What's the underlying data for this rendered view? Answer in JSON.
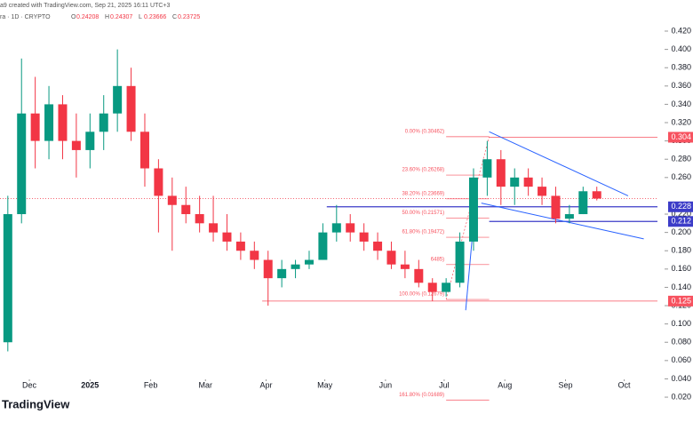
{
  "header": {
    "credit": "a9 created with TradingView.com, Sep 21, 2025 16:11 UTC+3",
    "symbol": "ra · 1D · CRYPTO",
    "ohlc": [
      {
        "label": "O",
        "value": "0.24208"
      },
      {
        "label": "H",
        "value": "0.24307"
      },
      {
        "label": "L",
        "value": "0.23666"
      },
      {
        "label": "C",
        "value": "0.23725"
      }
    ]
  },
  "chart_data": {
    "type": "candlestick",
    "up_color": "#089981",
    "down_color": "#f23645",
    "xlim": [
      -15,
      321
    ],
    "ylim": [
      0.005,
      0.45
    ],
    "xticks": [
      {
        "value": 0,
        "label": "Dec"
      },
      {
        "value": 31,
        "label": "2025"
      },
      {
        "value": 62,
        "label": "Feb"
      },
      {
        "value": 90,
        "label": "Mar"
      },
      {
        "value": 121,
        "label": "Apr"
      },
      {
        "value": 151,
        "label": "May"
      },
      {
        "value": 182,
        "label": "Jun"
      },
      {
        "value": 212,
        "label": "Jul"
      },
      {
        "value": 243,
        "label": "Aug"
      },
      {
        "value": 274,
        "label": "Sep"
      },
      {
        "value": 304,
        "label": "Oct"
      }
    ],
    "yticks": [
      {
        "value": 0.02,
        "label": "0.020"
      },
      {
        "value": 0.04,
        "label": "0.040"
      },
      {
        "value": 0.06,
        "label": "0.060"
      },
      {
        "value": 0.08,
        "label": "0.080"
      },
      {
        "value": 0.1,
        "label": "0.100"
      },
      {
        "value": 0.12,
        "label": "0.120"
      },
      {
        "value": 0.14,
        "label": "0.140"
      },
      {
        "value": 0.16,
        "label": "0.160"
      },
      {
        "value": 0.18,
        "label": "0.180"
      },
      {
        "value": 0.2,
        "label": "0.200"
      },
      {
        "value": 0.22,
        "label": "0.220"
      },
      {
        "value": 0.26,
        "label": "0.260"
      },
      {
        "value": 0.28,
        "label": "0.280"
      },
      {
        "value": 0.3,
        "label": "0.300"
      },
      {
        "value": 0.32,
        "label": "0.320"
      },
      {
        "value": 0.34,
        "label": "0.340"
      },
      {
        "value": 0.36,
        "label": "0.360"
      },
      {
        "value": 0.38,
        "label": "0.380"
      },
      {
        "value": 0.4,
        "label": "0.400"
      },
      {
        "value": 0.42,
        "label": "0.420"
      }
    ],
    "x": [
      -11,
      -4,
      3,
      10,
      17,
      24,
      31,
      38,
      45,
      52,
      59,
      66,
      73,
      80,
      87,
      94,
      101,
      108,
      115,
      122,
      129,
      136,
      143,
      150,
      157,
      164,
      171,
      178,
      185,
      192,
      199,
      206,
      213,
      220,
      227,
      234,
      241,
      248,
      255,
      262,
      269,
      276,
      283,
      290
    ],
    "open": [
      0.08,
      0.22,
      0.33,
      0.3,
      0.34,
      0.3,
      0.29,
      0.31,
      0.33,
      0.36,
      0.31,
      0.27,
      0.24,
      0.23,
      0.22,
      0.21,
      0.2,
      0.19,
      0.18,
      0.17,
      0.15,
      0.16,
      0.165,
      0.17,
      0.2,
      0.21,
      0.2,
      0.19,
      0.18,
      0.165,
      0.16,
      0.145,
      0.135,
      0.145,
      0.19,
      0.26,
      0.28,
      0.25,
      0.26,
      0.25,
      0.24,
      0.215,
      0.22,
      0.245
    ],
    "high": [
      0.24,
      0.39,
      0.37,
      0.36,
      0.35,
      0.33,
      0.33,
      0.35,
      0.4,
      0.38,
      0.33,
      0.28,
      0.26,
      0.25,
      0.24,
      0.24,
      0.22,
      0.2,
      0.19,
      0.18,
      0.17,
      0.17,
      0.18,
      0.21,
      0.23,
      0.22,
      0.21,
      0.2,
      0.19,
      0.18,
      0.17,
      0.15,
      0.15,
      0.2,
      0.27,
      0.3,
      0.29,
      0.27,
      0.27,
      0.26,
      0.25,
      0.23,
      0.25,
      0.25
    ],
    "low": [
      0.07,
      0.21,
      0.27,
      0.28,
      0.28,
      0.26,
      0.27,
      0.29,
      0.31,
      0.3,
      0.25,
      0.2,
      0.18,
      0.21,
      0.2,
      0.19,
      0.18,
      0.17,
      0.16,
      0.12,
      0.14,
      0.15,
      0.16,
      0.17,
      0.19,
      0.19,
      0.18,
      0.17,
      0.16,
      0.15,
      0.14,
      0.125,
      0.13,
      0.14,
      0.18,
      0.24,
      0.23,
      0.23,
      0.24,
      0.23,
      0.21,
      0.21,
      0.22,
      0.235
    ],
    "close": [
      0.22,
      0.33,
      0.3,
      0.34,
      0.3,
      0.29,
      0.31,
      0.33,
      0.36,
      0.31,
      0.27,
      0.24,
      0.23,
      0.22,
      0.21,
      0.2,
      0.19,
      0.18,
      0.17,
      0.15,
      0.16,
      0.165,
      0.17,
      0.2,
      0.21,
      0.2,
      0.19,
      0.18,
      0.165,
      0.16,
      0.145,
      0.135,
      0.145,
      0.19,
      0.26,
      0.28,
      0.25,
      0.26,
      0.25,
      0.24,
      0.215,
      0.22,
      0.245,
      0.237
    ],
    "last_price": 0.237,
    "fib_range": [
      213,
      235
    ],
    "fib_levels": [
      {
        "value": 0.30462,
        "label": "0.00% (0.30462)"
      },
      {
        "value": 0.26268,
        "label": "23.60% (0.26268)"
      },
      {
        "value": 0.23669,
        "label": "38.20% (0.23669)"
      },
      {
        "value": 0.21571,
        "label": "50.00% (0.21571)"
      },
      {
        "value": 0.19472,
        "label": "61.80% (0.19472)"
      },
      {
        "value": 0.16485,
        "label": "6485)"
      },
      {
        "value": 0.12679,
        "label": "100.00% (0.12679)"
      },
      {
        "value": 0.01689,
        "label": "161.80% (0.01689)"
      }
    ],
    "price_lines": [
      {
        "value": 0.304,
        "label": "0.304",
        "color": "#f7525f",
        "from": 235
      },
      {
        "value": 0.228,
        "label": "0.228",
        "color": "#3c3cc8",
        "from": 152
      },
      {
        "value": 0.212,
        "label": "0.212",
        "color": "#3c3cc8",
        "from": 235
      },
      {
        "value": 0.125,
        "label": "0.125",
        "color": "#f7525f",
        "from": 119
      }
    ],
    "trend_lines": [
      {
        "x": [
          235,
          306
        ],
        "y": [
          0.31,
          0.24
        ]
      },
      {
        "x": [
          231,
          314
        ],
        "y": [
          0.232,
          0.193
        ]
      },
      {
        "x": [
          223,
          228
        ],
        "y": [
          0.115,
          0.234
        ]
      }
    ]
  },
  "footer": {
    "logo": "TradingView"
  }
}
